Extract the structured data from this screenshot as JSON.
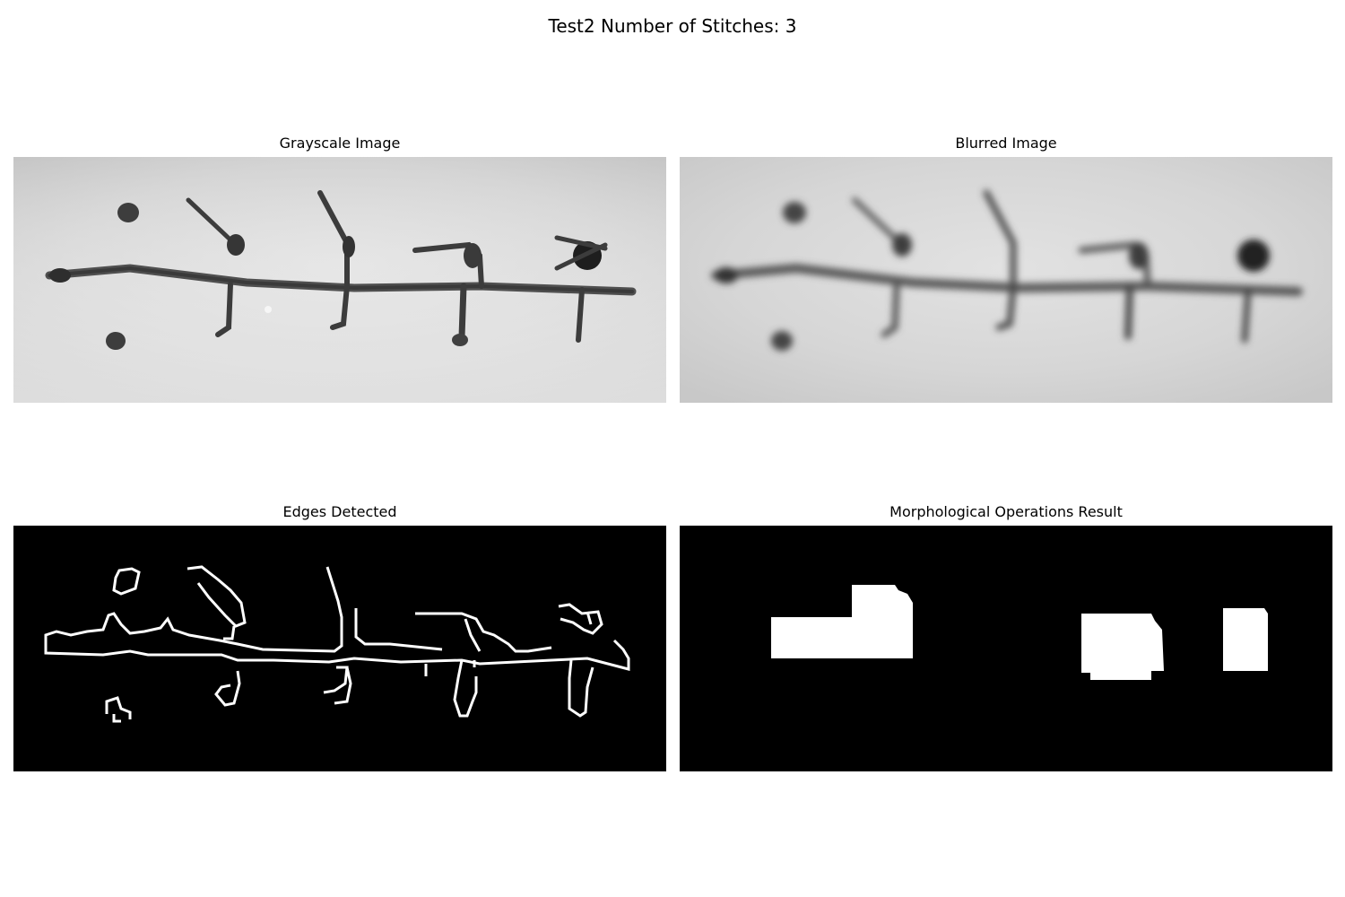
{
  "figure": {
    "title": "Test2 Number of Stitches: 3"
  },
  "panels": {
    "grayscale": {
      "title": "Grayscale Image"
    },
    "blurred": {
      "title": "Blurred Image"
    },
    "edges": {
      "title": "Edges Detected"
    },
    "morph": {
      "title": "Morphological Operations Result"
    }
  },
  "colors": {
    "background": "#ffffff",
    "skin": "#d4d4d4",
    "suture": "#4a4a4a",
    "mask_bg": "#000000",
    "mask_fg": "#ffffff"
  }
}
